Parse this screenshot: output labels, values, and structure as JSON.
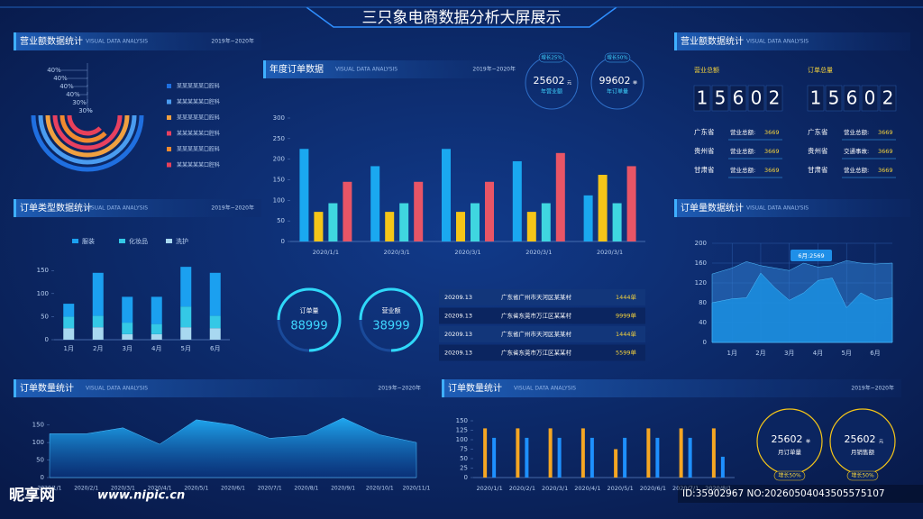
{
  "header": {
    "title": "三只象电商数据分析大屏展示"
  },
  "revenue_rings": {
    "title": "营业额数据统计",
    "subtitle": "VISUAL DATA ANALYSIS",
    "date": "2019年~2020年",
    "chart": {
      "type": "radial",
      "values": [
        40,
        40,
        40,
        40,
        30,
        30
      ],
      "value_labels": [
        "40%",
        "40%",
        "40%",
        "40%",
        "30%",
        "30%"
      ],
      "series": [
        {
          "name": "某某某某某口腔科",
          "color": "#1f6fe0"
        },
        {
          "name": "某某某某某口腔科",
          "color": "#4a9cf0"
        },
        {
          "name": "某某某某某口腔科",
          "color": "#f0a040"
        },
        {
          "name": "某某某某某口腔科",
          "color": "#e84060"
        },
        {
          "name": "某某某某某口腔科",
          "color": "#f08a30"
        },
        {
          "name": "某某某某某口腔科",
          "color": "#e8405a"
        }
      ]
    }
  },
  "order_types": {
    "title": "订单类型数据统计",
    "subtitle": "VISUAL DATA ANALYSIS",
    "date": "2019年~2020年",
    "chart": {
      "type": "stacked_bar",
      "categories": [
        "1月",
        "2月",
        "3月",
        "4月",
        "5月",
        "6月"
      ],
      "series": [
        {
          "name": "服装",
          "color": "#1ba0f0",
          "values": [
            28,
            93,
            56,
            59,
            86,
            93
          ]
        },
        {
          "name": "化妆品",
          "color": "#34c8e6",
          "values": [
            25,
            25,
            25,
            22,
            45,
            27
          ]
        },
        {
          "name": "洗护",
          "color": "#a8d8f0",
          "values": [
            25,
            27,
            12,
            12,
            27,
            25
          ]
        }
      ],
      "ylim": [
        0,
        170
      ],
      "yticks": [
        0,
        50,
        100,
        150
      ]
    }
  },
  "annual_orders": {
    "title": "年度订单数据",
    "subtitle": "VISUAL DATA ANALYSIS",
    "date": "2019年~2020年",
    "chart": {
      "type": "grouped_bar",
      "categories": [
        "2020/1/1",
        "2020/3/1",
        "2020/3/1",
        "2020/3/1",
        "2020/3/1"
      ],
      "series": [
        {
          "color": "#1aa8f0",
          "values": [
            225,
            183,
            225,
            195,
            112
          ]
        },
        {
          "color": "#f5c518",
          "values": [
            72,
            72,
            72,
            72,
            162
          ]
        },
        {
          "color": "#3fd6e0",
          "values": [
            93,
            93,
            93,
            93,
            93
          ]
        },
        {
          "color": "#e85566",
          "values": [
            145,
            145,
            145,
            215,
            183
          ]
        }
      ],
      "ylim": [
        0,
        300
      ],
      "yticks": [
        0,
        50,
        100,
        150,
        200,
        250,
        300
      ]
    }
  },
  "kpi_top": [
    {
      "badge": "增长25%",
      "value": 25602,
      "unit": "元",
      "label": "年营业额"
    },
    {
      "badge": "增长50%",
      "value": 99602,
      "unit": "单",
      "label": "年订单量"
    }
  ],
  "kpi_mid": [
    {
      "label": "订单量",
      "value": 88999
    },
    {
      "label": "营业额",
      "value": 38999
    }
  ],
  "order_table": {
    "rows": [
      [
        "20209.13",
        "广东省广州市天河区某某村",
        "1444单"
      ],
      [
        "20209.13",
        "广东省东莞市万江区某某村",
        "9999单"
      ],
      [
        "20209.13",
        "广东省广州市天河区某某村",
        "1444单"
      ],
      [
        "20209.13",
        "广东省东莞市万江区某某村",
        "5599单"
      ]
    ]
  },
  "revenue_board": {
    "title": "营业额数据统计",
    "subtitle": "VISUAL DATA ANALYSIS",
    "columns": [
      {
        "heading": "营业总额",
        "digits": [
          "1",
          "5",
          "6",
          "0",
          "2"
        ],
        "rows": [
          {
            "province": "广东省",
            "label": "营业总额:",
            "value": 3669
          },
          {
            "province": "贵州省",
            "label": "营业总额:",
            "value": 3669
          },
          {
            "province": "甘肃省",
            "label": "营业总额:",
            "value": 3669
          }
        ]
      },
      {
        "heading": "订单总量",
        "digits": [
          "1",
          "5",
          "6",
          "0",
          "2"
        ],
        "rows": [
          {
            "province": "广东省",
            "label": "营业总额:",
            "value": 3669
          },
          {
            "province": "贵州省",
            "label": "交通事故:",
            "value": 3669
          },
          {
            "province": "甘肃省",
            "label": "营业总额:",
            "value": 3669
          }
        ]
      }
    ]
  },
  "order_volume_area": {
    "title": "订单量数据统计",
    "subtitle": "VISUAL DATA ANALYSIS",
    "chart": {
      "type": "area",
      "x": [
        0.3,
        1,
        1.5,
        2,
        2.5,
        3,
        3.5,
        4,
        4.5,
        5,
        5.5,
        6,
        6.6
      ],
      "xlim": [
        0.3,
        6.6
      ],
      "xticks": [
        {
          "value": 1,
          "label": "1月"
        },
        {
          "value": 2,
          "label": "2月"
        },
        {
          "value": 3,
          "label": "3月"
        },
        {
          "value": 4,
          "label": "4月"
        },
        {
          "value": 5,
          "label": "5月"
        },
        {
          "value": 6,
          "label": "6月"
        }
      ],
      "series": [
        {
          "color": "#2f7fd6",
          "values": [
            138,
            150,
            163,
            155,
            150,
            145,
            160,
            152,
            155,
            165,
            160,
            158,
            160
          ]
        },
        {
          "color": "#1b8fe0",
          "values": [
            80,
            88,
            90,
            140,
            110,
            85,
            100,
            125,
            130,
            70,
            100,
            85,
            90
          ]
        }
      ],
      "ylim": [
        0,
        200
      ],
      "yticks": [
        0,
        40,
        80,
        120,
        160,
        200
      ],
      "grid": true,
      "tooltip": "6月:2569"
    }
  },
  "order_count_line": {
    "title": "订单数量统计",
    "subtitle": "VISUAL DATA ANALYSIS",
    "date": "2019年~2020年",
    "chart": {
      "type": "area",
      "categories": [
        "2020/1/1",
        "2020/2/1",
        "2020/3/1",
        "2020/4/1",
        "2020/5/1",
        "2020/6/1",
        "2020/7/1",
        "2020/8/1",
        "2020/9/1",
        "2020/10/1",
        "2020/11/1"
      ],
      "values": [
        125,
        125,
        142,
        95,
        165,
        150,
        112,
        120,
        170,
        122,
        100
      ],
      "color": "#1a9be8",
      "ylim": [
        0,
        180
      ],
      "yticks": [
        0,
        50,
        100,
        150
      ]
    }
  },
  "order_count_bars": {
    "title": "订单数量统计",
    "subtitle": "VISUAL DATA ANALYSIS",
    "date": "2019年~2020年",
    "chart": {
      "type": "grouped_bar",
      "categories": [
        "2020/1/1",
        "2020/2/1",
        "2020/3/1",
        "2020/4/1",
        "2020/5/1",
        "2020/6/1",
        "2020/7/1",
        "2020/8/1"
      ],
      "series": [
        {
          "color": "#f5a623",
          "values": [
            130,
            130,
            130,
            130,
            75,
            130,
            130,
            130
          ]
        },
        {
          "color": "#1e90ff",
          "values": [
            105,
            105,
            105,
            105,
            105,
            105,
            105,
            55
          ]
        }
      ],
      "ylim": [
        0,
        150
      ],
      "yticks": [
        0,
        25,
        50,
        75,
        100,
        125,
        150
      ]
    }
  },
  "kpi_bottom": [
    {
      "value": 25602,
      "unit": "单",
      "label": "月订单量",
      "badge": "增长50%"
    },
    {
      "value": 25602,
      "unit": "元",
      "label": "月销售额",
      "badge": "增长50%"
    }
  ],
  "watermark": {
    "site": "昵享网",
    "url": "www.nipic.cn",
    "id": "ID:35902967 NO:20260504043505575107"
  }
}
